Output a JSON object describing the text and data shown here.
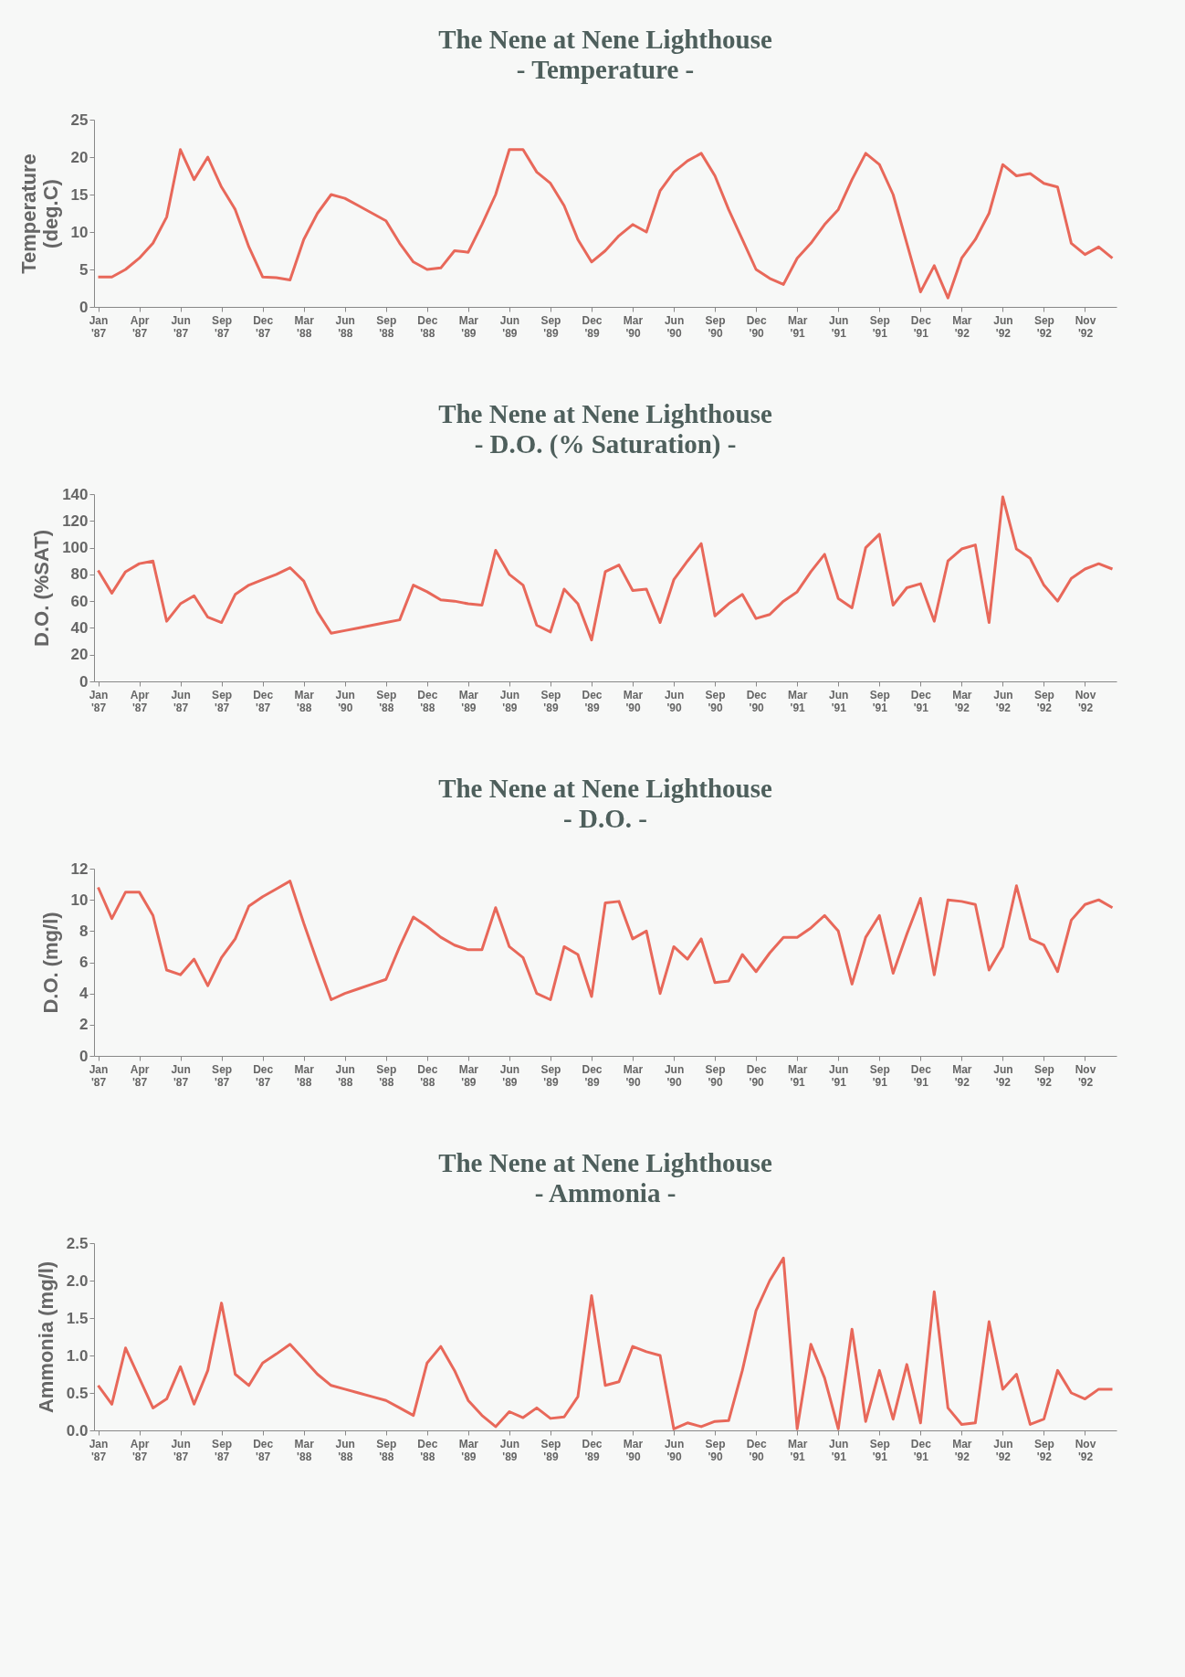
{
  "chart_data": [
    {
      "type": "line",
      "title": "The Nene at Nene Lighthouse",
      "subtitle": "- Temperature -",
      "ylabel": "Temperature (deg.C)",
      "ylim": [
        0,
        25
      ],
      "yticks": [
        0,
        5,
        10,
        15,
        20,
        25
      ],
      "grid": false,
      "categories": [
        "Jan '87",
        null,
        null,
        "Apr '87",
        null,
        null,
        "Jun '87",
        null,
        null,
        "Sep '87",
        null,
        null,
        "Dec '87",
        null,
        null,
        "Mar '88",
        null,
        null,
        "Jun '88",
        null,
        null,
        "Sep '88",
        null,
        null,
        "Dec '88",
        null,
        null,
        "Mar '89",
        null,
        null,
        "Jun '89",
        null,
        null,
        "Sep '89",
        null,
        null,
        "Dec '89",
        null,
        null,
        "Mar '90",
        null,
        null,
        "Jun '90",
        null,
        null,
        "Sep '90",
        null,
        null,
        "Dec '90",
        null,
        null,
        "Mar '91",
        null,
        null,
        "Jun '91",
        null,
        null,
        "Sep '91",
        null,
        null,
        "Dec '91",
        null,
        null,
        "Mar '92",
        null,
        null,
        "Jun '92",
        null,
        null,
        "Sep '92",
        null,
        null,
        "Nov '92",
        null,
        null
      ],
      "series": [
        {
          "color": "#e8685a",
          "values": [
            4,
            4,
            5,
            6.5,
            8.5,
            12,
            21,
            17,
            20,
            16,
            13,
            8,
            4,
            3.9,
            3.6,
            9,
            12.5,
            15,
            14.5,
            13.5,
            12.5,
            11.5,
            8.5,
            6,
            5,
            5.2,
            7.5,
            7.3,
            11,
            15,
            21,
            21,
            18,
            16.5,
            13.5,
            9,
            6,
            7.5,
            9.5,
            11,
            10,
            15.5,
            18,
            19.5,
            20.5,
            17.5,
            13,
            9,
            5,
            3.8,
            3,
            6.5,
            8.5,
            11,
            13,
            17,
            20.5,
            19,
            15,
            8.5,
            2,
            5.5,
            1.2,
            6.5,
            9,
            12.5,
            19,
            17.5,
            17.8,
            16.5,
            16,
            8.5,
            7,
            8,
            6.5
          ]
        }
      ]
    },
    {
      "type": "line",
      "title": "The Nene at Nene Lighthouse",
      "subtitle": "- D.O. (% Saturation) -",
      "ylabel": "D.O. (%SAT)",
      "ylim": [
        0,
        140
      ],
      "yticks": [
        0,
        20,
        40,
        60,
        80,
        100,
        120,
        140
      ],
      "grid": false,
      "categories": [
        "Jan '87",
        null,
        null,
        "Apr '87",
        null,
        null,
        "Jun '87",
        null,
        null,
        "Sep '87",
        null,
        null,
        "Dec '87",
        null,
        null,
        "Mar '88",
        null,
        null,
        "Jun '90",
        null,
        null,
        "Sep '88",
        null,
        null,
        "Dec '88",
        null,
        null,
        "Mar '89",
        null,
        null,
        "Jun '89",
        null,
        null,
        "Sep '89",
        null,
        null,
        "Dec '89",
        null,
        null,
        "Mar '90",
        null,
        null,
        "Jun '90",
        null,
        null,
        "Sep '90",
        null,
        null,
        "Dec '90",
        null,
        null,
        "Mar '91",
        null,
        null,
        "Jun '91",
        null,
        null,
        "Sep '91",
        null,
        null,
        "Dec '91",
        null,
        null,
        "Mar '92",
        null,
        null,
        "Jun '92",
        null,
        null,
        "Sep '92",
        null,
        null,
        "Nov '92",
        null,
        null
      ],
      "series": [
        {
          "color": "#e8685a",
          "values": [
            83,
            66,
            82,
            88,
            90,
            45,
            58,
            64,
            48,
            44,
            65,
            72,
            76,
            80,
            85,
            75,
            52,
            36,
            38,
            40,
            42,
            44,
            46,
            72,
            67,
            61,
            60,
            58,
            57,
            98,
            80,
            72,
            42,
            37,
            69,
            58,
            31,
            82,
            87,
            68,
            69,
            44,
            76,
            90,
            103,
            49,
            58,
            65,
            47,
            50,
            60,
            67,
            82,
            95,
            62,
            55,
            100,
            110,
            57,
            70,
            73,
            45,
            90,
            99,
            102,
            44,
            138,
            99,
            92,
            72,
            60,
            77,
            84,
            88,
            84
          ]
        }
      ]
    },
    {
      "type": "line",
      "title": "The Nene at Nene Lighthouse",
      "subtitle": "- D.O. -",
      "ylabel": "D.O. (mg/l)",
      "ylim": [
        0,
        12
      ],
      "yticks": [
        0,
        2,
        4,
        6,
        8,
        10,
        12
      ],
      "grid": false,
      "categories": [
        "Jan '87",
        null,
        null,
        "Apr '87",
        null,
        null,
        "Jun '87",
        null,
        null,
        "Sep '87",
        null,
        null,
        "Dec '87",
        null,
        null,
        "Mar '88",
        null,
        null,
        "Jun '88",
        null,
        null,
        "Sep '88",
        null,
        null,
        "Dec '88",
        null,
        null,
        "Mar '89",
        null,
        null,
        "Jun '89",
        null,
        null,
        "Sep '89",
        null,
        null,
        "Dec '89",
        null,
        null,
        "Mar '90",
        null,
        null,
        "Jun '90",
        null,
        null,
        "Sep '90",
        null,
        null,
        "Dec '90",
        null,
        null,
        "Mar '91",
        null,
        null,
        "Jun '91",
        null,
        null,
        "Sep '91",
        null,
        null,
        "Dec '91",
        null,
        null,
        "Mar '92",
        null,
        null,
        "Jun '92",
        null,
        null,
        "Sep '92",
        null,
        null,
        "Nov '92",
        null,
        null
      ],
      "series": [
        {
          "color": "#e8685a",
          "values": [
            10.8,
            8.8,
            10.5,
            10.5,
            9,
            5.5,
            5.2,
            6.2,
            4.5,
            6.3,
            7.5,
            9.6,
            10.2,
            10.7,
            11.2,
            8.5,
            6,
            3.6,
            4,
            4.3,
            4.6,
            4.9,
            7,
            8.9,
            8.3,
            7.6,
            7.1,
            6.8,
            6.8,
            9.5,
            7,
            6.3,
            4,
            3.6,
            7,
            6.5,
            3.8,
            9.8,
            9.9,
            7.5,
            8,
            4,
            7,
            6.2,
            7.5,
            4.7,
            4.8,
            6.5,
            5.4,
            6.6,
            7.6,
            7.6,
            8.2,
            9,
            8,
            4.6,
            7.6,
            9,
            5.3,
            7.8,
            10.1,
            5.2,
            10,
            9.9,
            9.7,
            5.5,
            7,
            10.9,
            7.5,
            7.1,
            5.4,
            8.7,
            9.7,
            10,
            9.5
          ]
        }
      ]
    },
    {
      "type": "line",
      "title": "The Nene at Nene Lighthouse",
      "subtitle": "- Ammonia -",
      "ylabel": "Ammonia (mg/l)",
      "ylim": [
        0,
        2.5
      ],
      "yticks": [
        {
          "value": 0,
          "label": "0.0"
        },
        0.5,
        {
          "value": 1,
          "label": "1.0"
        },
        1.5,
        {
          "value": 2,
          "label": "2.0"
        },
        2.5
      ],
      "grid": false,
      "categories": [
        "Jan '87",
        null,
        null,
        "Apr '87",
        null,
        null,
        "Jun '87",
        null,
        null,
        "Sep '87",
        null,
        null,
        "Dec '87",
        null,
        null,
        "Mar '88",
        null,
        null,
        "Jun '88",
        null,
        null,
        "Sep '88",
        null,
        null,
        "Dec '88",
        null,
        null,
        "Mar '89",
        null,
        null,
        "Jun '89",
        null,
        null,
        "Sep '89",
        null,
        null,
        "Dec '89",
        null,
        null,
        "Mar '90",
        null,
        null,
        "Jun '90",
        null,
        null,
        "Sep '90",
        null,
        null,
        "Dec '90",
        null,
        null,
        "Mar '91",
        null,
        null,
        "Jun '91",
        null,
        null,
        "Sep '91",
        null,
        null,
        "Dec '91",
        null,
        null,
        "Mar '92",
        null,
        null,
        "Jun '92",
        null,
        null,
        "Sep '92",
        null,
        null,
        "Nov '92",
        null,
        null
      ],
      "series": [
        {
          "color": "#e8685a",
          "values": [
            0.6,
            0.35,
            1.1,
            0.7,
            0.3,
            0.42,
            0.85,
            0.35,
            0.8,
            1.7,
            0.75,
            0.6,
            0.9,
            1.02,
            1.15,
            0.95,
            0.75,
            0.6,
            0.55,
            0.5,
            0.45,
            0.4,
            0.3,
            0.2,
            0.9,
            1.12,
            0.8,
            0.4,
            0.2,
            0.05,
            0.25,
            0.17,
            0.3,
            0.16,
            0.18,
            0.45,
            1.8,
            0.6,
            0.65,
            1.12,
            1.05,
            1,
            0.02,
            0.1,
            0.05,
            0.12,
            0.13,
            0.8,
            1.6,
            2,
            2.3,
            0.02,
            1.15,
            0.7,
            0.02,
            1.35,
            0.12,
            0.8,
            0.15,
            0.88,
            0.1,
            1.85,
            0.3,
            0.08,
            0.1,
            1.45,
            0.55,
            0.75,
            0.08,
            0.15,
            0.8,
            0.5,
            0.42,
            0.55,
            0.55
          ]
        }
      ]
    }
  ]
}
